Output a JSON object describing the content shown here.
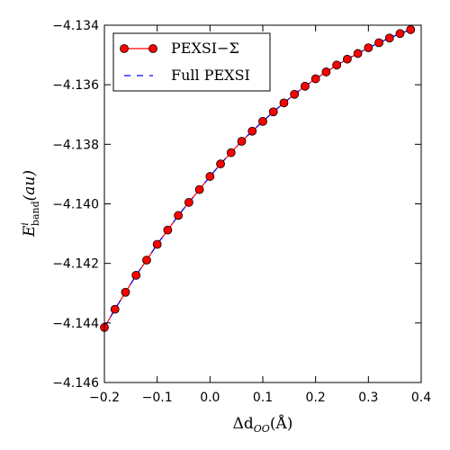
{
  "chart_data": {
    "type": "line",
    "x": [
      -0.2,
      -0.18,
      -0.16,
      -0.14,
      -0.12,
      -0.1,
      -0.08,
      -0.06,
      -0.04,
      -0.02,
      0.0,
      0.02,
      0.04,
      0.06,
      0.08,
      0.1,
      0.12,
      0.14,
      0.16,
      0.18,
      0.2,
      0.22,
      0.24,
      0.26,
      0.28,
      0.3,
      0.32,
      0.34,
      0.36,
      0.38
    ],
    "series": [
      {
        "name": "PEXSI−Σ",
        "style": "line-with-circle-markers",
        "color": "#ff0000",
        "values": [
          -4.14415,
          -4.14354,
          -4.14297,
          -4.1424,
          -4.14189,
          -4.14136,
          -4.14088,
          -4.14039,
          -4.13995,
          -4.13952,
          -4.13908,
          -4.13866,
          -4.13828,
          -4.1379,
          -4.13756,
          -4.13723,
          -4.13691,
          -4.13661,
          -4.13632,
          -4.13605,
          -4.1358,
          -4.13557,
          -4.13534,
          -4.13514,
          -4.13495,
          -4.13476,
          -4.13459,
          -4.13443,
          -4.13428,
          -4.13415
        ]
      },
      {
        "name": "Full PEXSI",
        "style": "dashed-line",
        "color": "#0000ff",
        "values": [
          -4.14415,
          -4.14354,
          -4.14297,
          -4.1424,
          -4.14189,
          -4.14136,
          -4.14088,
          -4.14039,
          -4.13995,
          -4.13952,
          -4.13908,
          -4.13866,
          -4.13828,
          -4.1379,
          -4.13756,
          -4.13723,
          -4.13691,
          -4.13661,
          -4.13632,
          -4.13605,
          -4.1358,
          -4.13557,
          -4.13534,
          -4.13514,
          -4.13495,
          -4.13476,
          -4.13459,
          -4.13443,
          -4.13428,
          -4.13415
        ]
      }
    ],
    "xlim": [
      -0.2,
      0.4
    ],
    "ylim": [
      -4.146,
      -4.134
    ],
    "xticks": [
      -0.2,
      -0.1,
      0.0,
      0.1,
      0.2,
      0.3,
      0.4
    ],
    "xtick_labels": [
      "−0.2",
      "−0.1",
      "0.0",
      "0.1",
      "0.2",
      "0.3",
      "0.4"
    ],
    "yticks": [
      -4.146,
      -4.144,
      -4.142,
      -4.14,
      -4.138,
      -4.136,
      -4.134
    ],
    "ytick_labels": [
      "−4.146",
      "−4.144",
      "−4.142",
      "−4.140",
      "−4.138",
      "−4.136",
      "−4.134"
    ],
    "xlabel": "Δd",
    "xlabel_sub": "OO",
    "xlabel_unit": "(Å)",
    "ylabel": "E",
    "ylabel_sup": "i",
    "ylabel_sub": "band",
    "ylabel_unit": "(au)",
    "legend_position": "top-left",
    "grid": false
  }
}
